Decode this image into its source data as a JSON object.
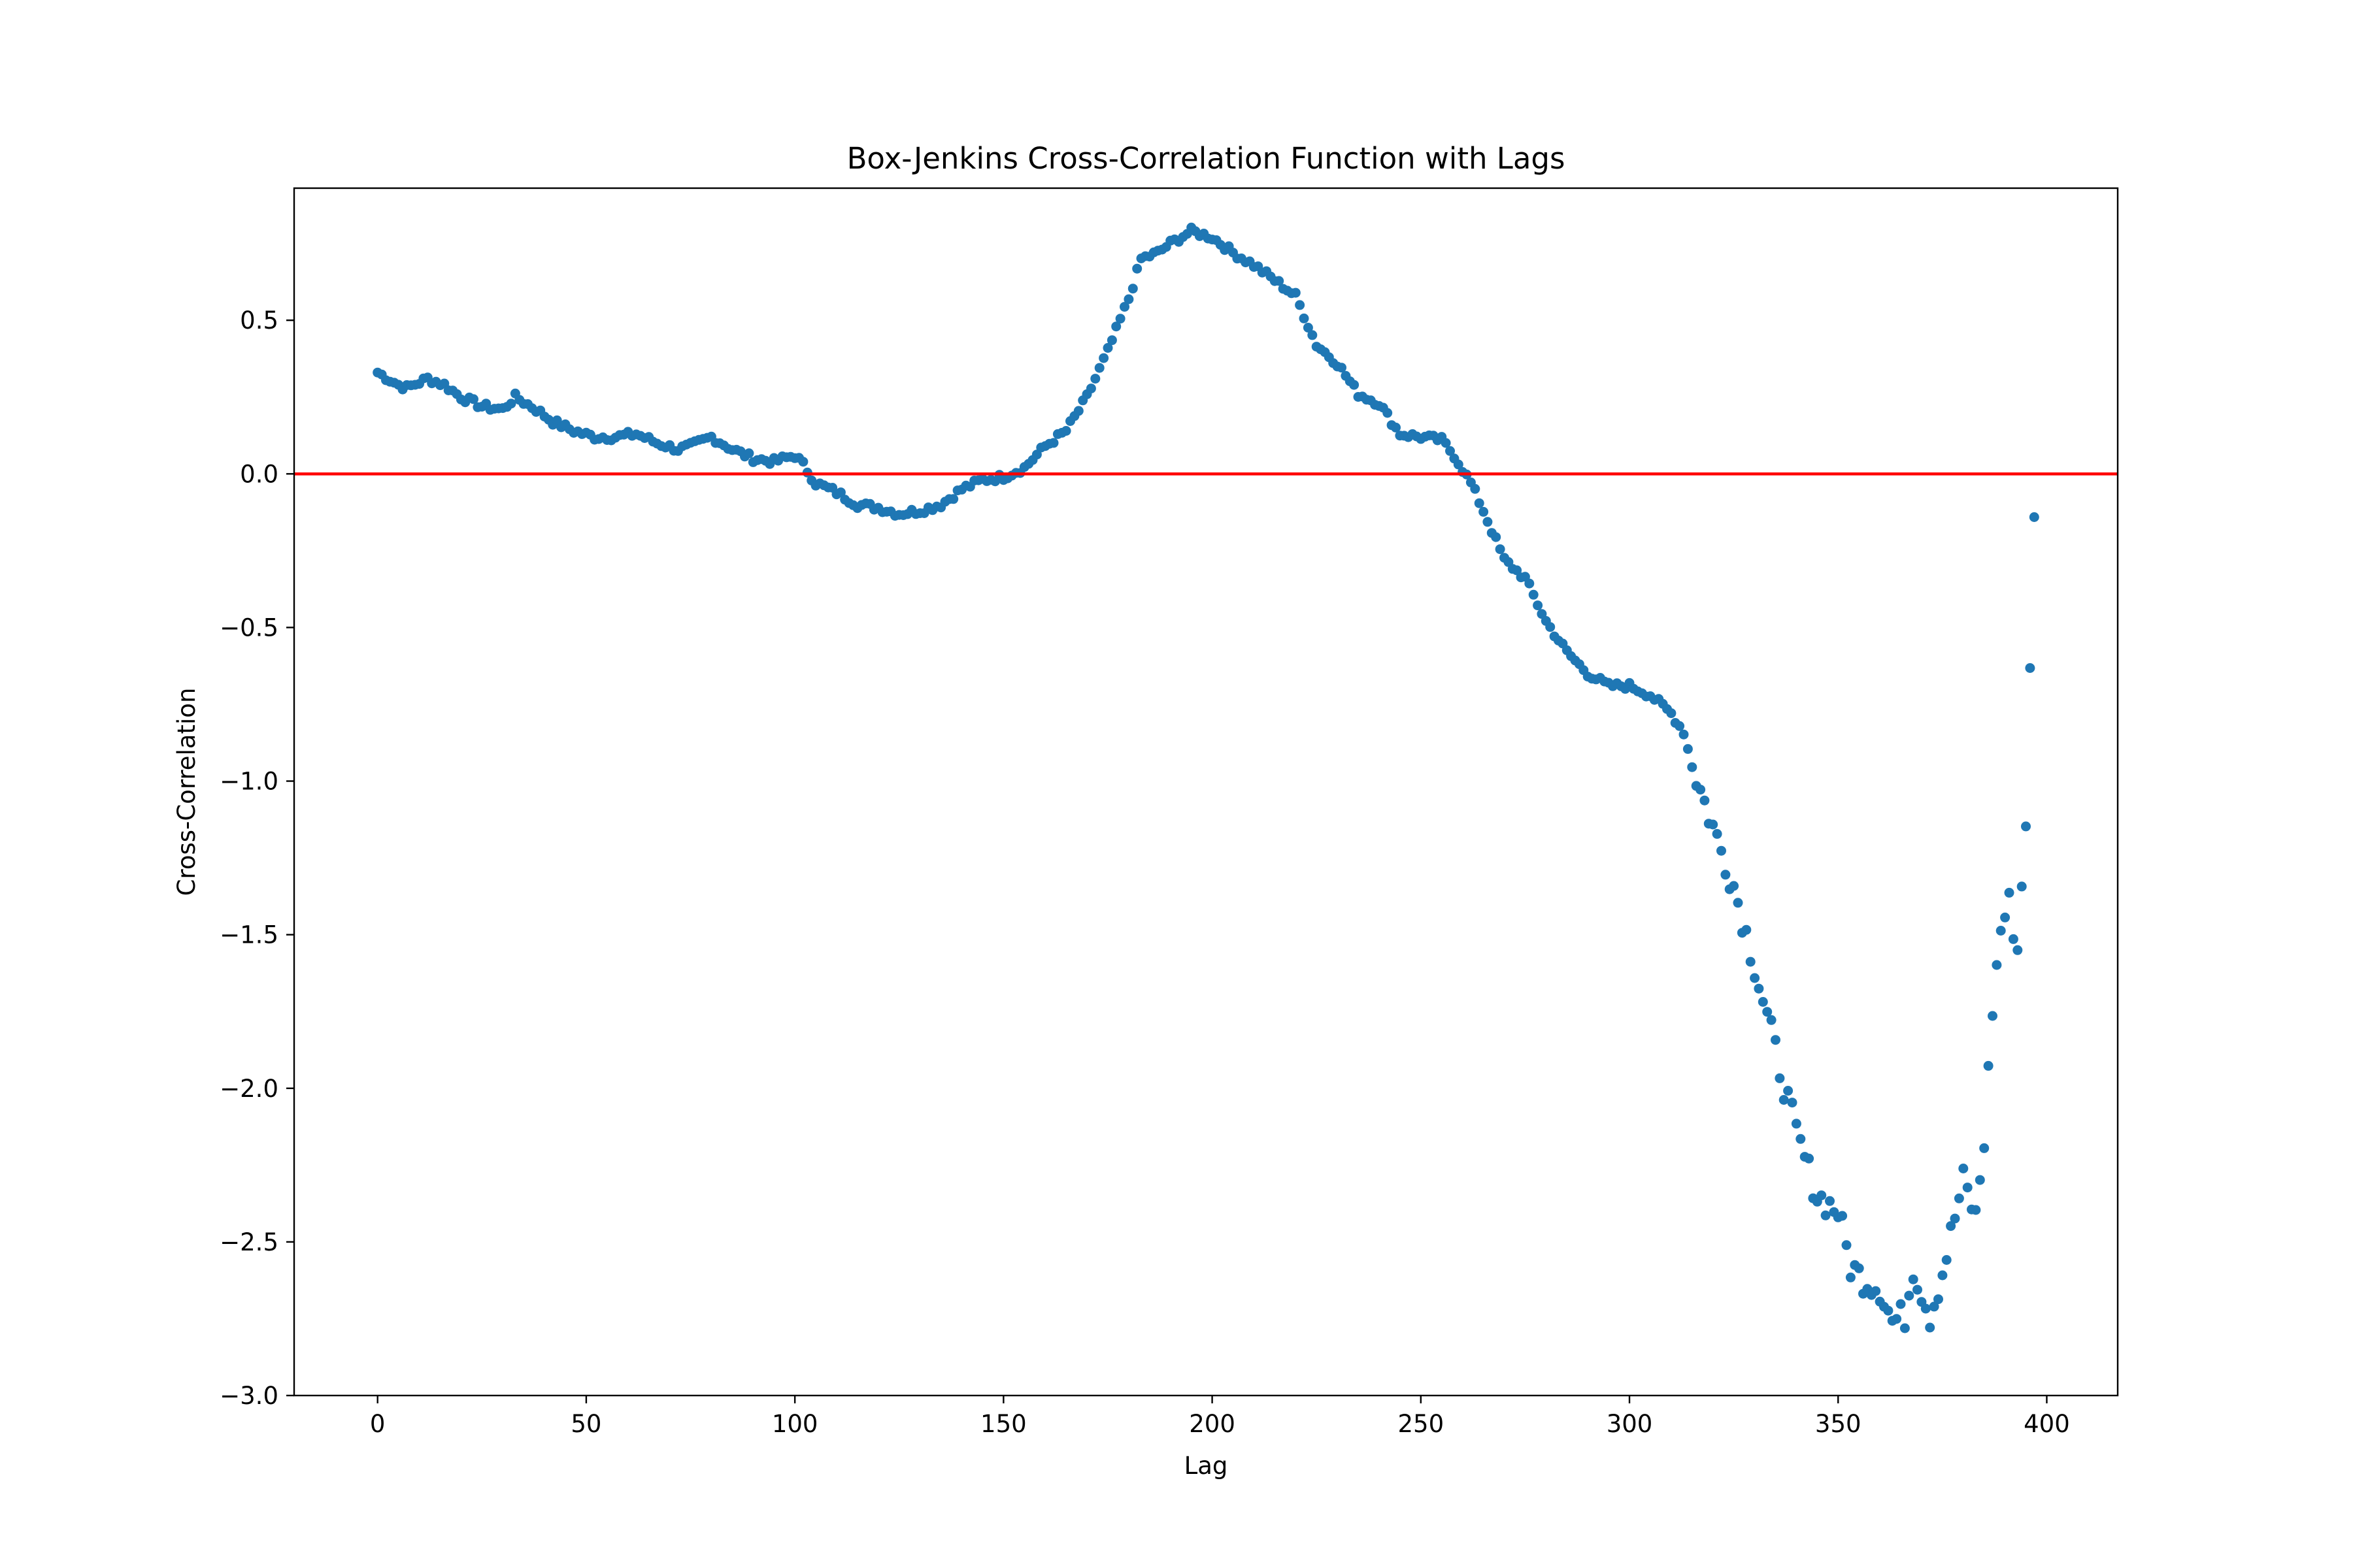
{
  "chart_data": {
    "type": "scatter",
    "title": "Box-Jenkins Cross-Correlation Function with Lags",
    "xlabel": "Lag",
    "ylabel": "Cross-Correlation",
    "xlim": [
      -20,
      417
    ],
    "ylim": [
      -3.0,
      0.93
    ],
    "x_ticks": [
      0,
      50,
      100,
      150,
      200,
      250,
      300,
      350,
      400
    ],
    "y_ticks": [
      -3.0,
      -2.5,
      -2.0,
      -1.5,
      -1.0,
      -0.5,
      0.0,
      0.5
    ],
    "grid": false,
    "legend": "none",
    "marker_color": "#1f77b4",
    "reference_line": {
      "y": 0.0,
      "color": "#ff0000"
    },
    "anchors": [
      [
        0,
        0.33
      ],
      [
        5,
        0.29
      ],
      [
        7,
        0.28
      ],
      [
        12,
        0.31
      ],
      [
        16,
        0.29
      ],
      [
        20,
        0.25
      ],
      [
        25,
        0.22
      ],
      [
        30,
        0.21
      ],
      [
        33,
        0.25
      ],
      [
        38,
        0.21
      ],
      [
        42,
        0.17
      ],
      [
        47,
        0.14
      ],
      [
        52,
        0.12
      ],
      [
        57,
        0.12
      ],
      [
        62,
        0.13
      ],
      [
        67,
        0.1
      ],
      [
        72,
        0.08
      ],
      [
        75,
        0.09
      ],
      [
        80,
        0.12
      ],
      [
        85,
        0.08
      ],
      [
        90,
        0.05
      ],
      [
        95,
        0.04
      ],
      [
        100,
        0.06
      ],
      [
        102,
        0.03
      ],
      [
        105,
        -0.03
      ],
      [
        110,
        -0.06
      ],
      [
        115,
        -0.1
      ],
      [
        120,
        -0.11
      ],
      [
        125,
        -0.13
      ],
      [
        130,
        -0.12
      ],
      [
        135,
        -0.1
      ],
      [
        140,
        -0.05
      ],
      [
        145,
        -0.02
      ],
      [
        150,
        -0.01
      ],
      [
        155,
        0.02
      ],
      [
        160,
        0.09
      ],
      [
        165,
        0.14
      ],
      [
        170,
        0.25
      ],
      [
        175,
        0.4
      ],
      [
        180,
        0.57
      ],
      [
        183,
        0.7
      ],
      [
        187,
        0.72
      ],
      [
        190,
        0.75
      ],
      [
        195,
        0.79
      ],
      [
        200,
        0.77
      ],
      [
        205,
        0.72
      ],
      [
        210,
        0.68
      ],
      [
        215,
        0.63
      ],
      [
        220,
        0.58
      ],
      [
        225,
        0.42
      ],
      [
        230,
        0.36
      ],
      [
        235,
        0.26
      ],
      [
        240,
        0.23
      ],
      [
        245,
        0.13
      ],
      [
        250,
        0.12
      ],
      [
        255,
        0.11
      ],
      [
        258,
        0.06
      ],
      [
        262,
        -0.03
      ],
      [
        265,
        -0.12
      ],
      [
        270,
        -0.28
      ],
      [
        275,
        -0.34
      ],
      [
        280,
        -0.48
      ],
      [
        285,
        -0.58
      ],
      [
        290,
        -0.65
      ],
      [
        295,
        -0.69
      ],
      [
        300,
        -0.69
      ],
      [
        305,
        -0.72
      ],
      [
        310,
        -0.78
      ],
      [
        313,
        -0.84
      ],
      [
        315,
        -0.95
      ],
      [
        320,
        -1.15
      ],
      [
        325,
        -1.34
      ],
      [
        330,
        -1.6
      ],
      [
        335,
        -1.88
      ],
      [
        340,
        -2.15
      ],
      [
        345,
        -2.35
      ],
      [
        350,
        -2.4
      ],
      [
        353,
        -2.58
      ],
      [
        356,
        -2.62
      ],
      [
        360,
        -2.65
      ],
      [
        363,
        -2.76
      ],
      [
        366,
        -2.74
      ],
      [
        368,
        -2.58
      ],
      [
        372,
        -2.74
      ],
      [
        375,
        -2.6
      ],
      [
        378,
        -2.42
      ],
      [
        380,
        -2.3
      ],
      [
        383,
        -2.42
      ],
      [
        385,
        -2.17
      ],
      [
        387,
        -1.74
      ],
      [
        389,
        -1.48
      ],
      [
        391,
        -1.4
      ],
      [
        393,
        -1.55
      ],
      [
        395,
        -1.12
      ],
      [
        396,
        -0.66
      ],
      [
        397,
        -0.16
      ]
    ],
    "n_points": 398
  }
}
